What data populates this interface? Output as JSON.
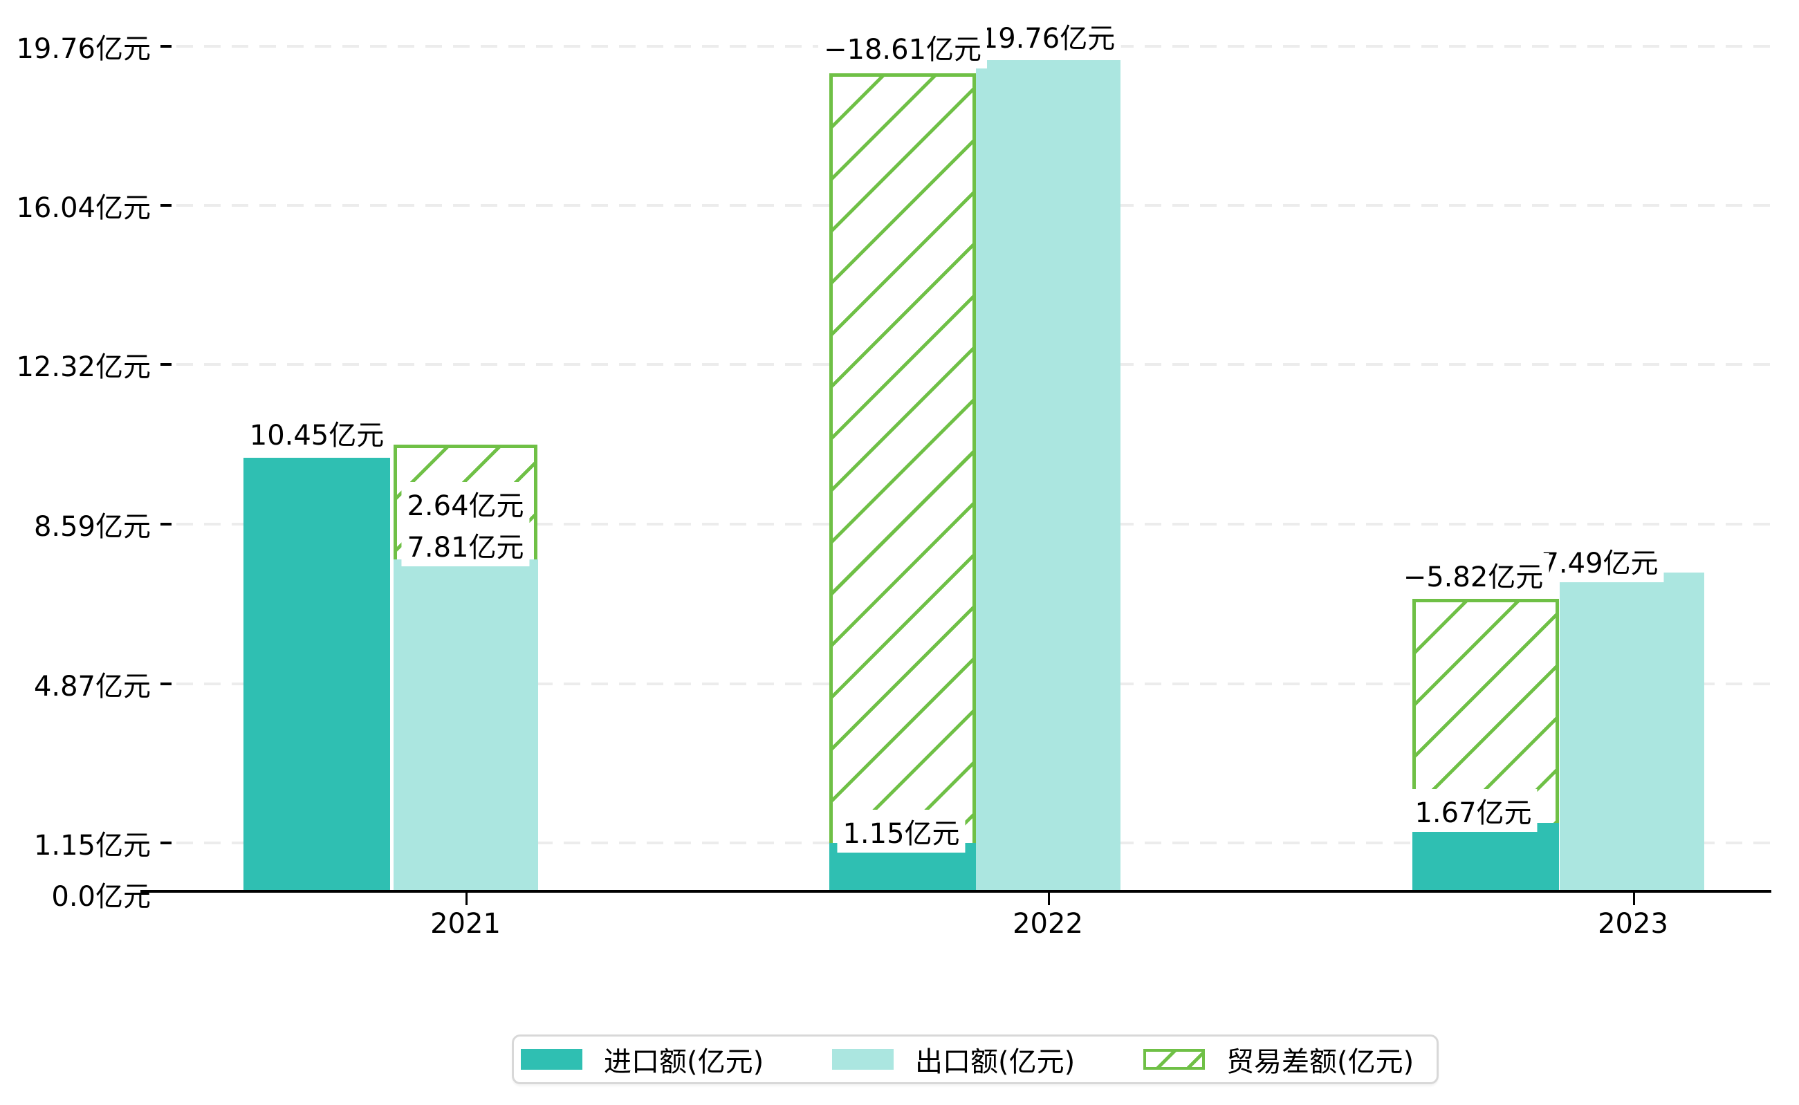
{
  "chart_data": {
    "type": "bar",
    "title": "",
    "xlabel": "",
    "ylabel": "",
    "categories": [
      "2021",
      "2022",
      "2023"
    ],
    "series": [
      {
        "name": "进口额(亿元)",
        "role": "import",
        "color": "#2fbfb2",
        "values": [
          10.45,
          1.15,
          1.67
        ],
        "value_labels": [
          "10.45亿元",
          "1.15亿元",
          "1.67亿元"
        ]
      },
      {
        "name": "出口额(亿元)",
        "role": "export",
        "color": "#abe6e0",
        "values": [
          7.81,
          19.76,
          7.49
        ],
        "value_labels": [
          "7.81亿元",
          "19.76亿元",
          "7.49亿元"
        ]
      },
      {
        "name": "贸易差额(亿元)",
        "role": "trade-balance",
        "color": "#6fc046",
        "pattern": "diagonal-hatch",
        "values": [
          2.64,
          -18.61,
          -5.82
        ],
        "value_labels": [
          "2.64亿元",
          "−18.61亿元",
          "−5.82亿元"
        ]
      }
    ],
    "y_axis": {
      "unit": "亿元",
      "tick_values": [
        0.0,
        1.15,
        4.87,
        8.59,
        12.32,
        16.04,
        19.76
      ],
      "tick_labels": [
        "0.0亿元",
        "1.15亿元",
        "4.87亿元",
        "8.59亿元",
        "12.32亿元",
        "16.04亿元",
        "19.76亿元"
      ]
    },
    "ylim": [
      0,
      20.9
    ],
    "grid": "horizontal-dashed",
    "legend_position": "bottom",
    "colors": {
      "import": "#2fbfb2",
      "export": "#abe6e0",
      "balance": "#6fc046",
      "grid": "#ececec",
      "axis": "#000000",
      "legend_border": "#d8d8d8",
      "background": "#ffffff"
    }
  }
}
